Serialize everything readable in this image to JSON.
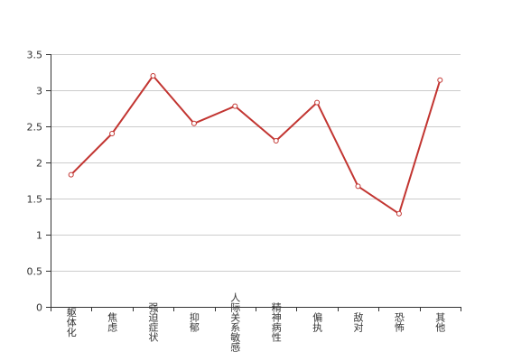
{
  "chart_data": {
    "type": "line",
    "categories": [
      "躯体化",
      "焦虑",
      "强迫症状",
      "抑郁",
      "人际关系敏感",
      "精神病性",
      "偏执",
      "敌对",
      "恐怖",
      "其他"
    ],
    "series": [
      {
        "values": [
          1.83,
          2.4,
          3.2,
          2.54,
          2.78,
          2.3,
          2.83,
          1.67,
          1.29,
          3.14
        ],
        "color": "#c23531"
      }
    ],
    "ylim": [
      0,
      3.5
    ],
    "yticks": [
      "0",
      "0.5",
      "1",
      "1.5",
      "2",
      "2.5",
      "3",
      "3.5"
    ],
    "grid": "horizontal",
    "title": "",
    "xlabel": "",
    "ylabel": ""
  }
}
